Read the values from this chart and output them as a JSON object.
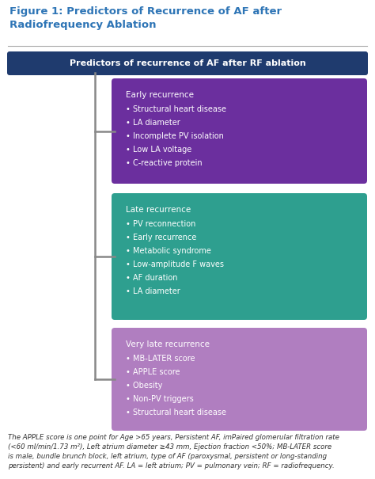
{
  "title": "Figure 1: Predictors of Recurrence of AF after\nRadiofrequency Ablation",
  "title_color": "#2E75B6",
  "title_fontsize": 9.5,
  "header_text": "Predictors of recurrence of AF after RF ablation",
  "header_bg": "#1F3B6E",
  "header_text_color": "#FFFFFF",
  "header_text_fontsize": 8.0,
  "boxes": [
    {
      "title": "Early recurrence",
      "items": [
        "Structural heart disease",
        "LA diameter",
        "Incomplete PV isolation",
        "Low LA voltage",
        "C-reactive protein"
      ],
      "bg_color": "#6B2F9E",
      "text_color": "#FFFFFF"
    },
    {
      "title": "Late recurrence",
      "items": [
        "PV reconnection",
        "Early recurrence",
        "Metabolic syndrome",
        "Low-amplitude F waves",
        "AF duration",
        "LA diameter"
      ],
      "bg_color": "#2E9F8F",
      "text_color": "#FFFFFF"
    },
    {
      "title": "Very late recurrence",
      "items": [
        "MB-LATER score",
        "APPLE score",
        "Obesity",
        "Non-PV triggers",
        "Structural heart disease"
      ],
      "bg_color": "#B07EC0",
      "text_color": "#FFFFFF"
    }
  ],
  "footnote": "The APPLE score is one point for Age >65 years, Persistent AF, imPaired glomerular filtration rate\n(<60 ml/min/1.73 m²), Left atrium diameter ≥43 mm, Ejection fraction <50%; MB-LATER score\nis male, bundle brunch block, left atrium, type of AF (paroxysmal, persistent or long-standing\npersistent) and early recurrent AF. LA = left atrium; PV = pulmonary vein; RF = radiofrequency.",
  "footnote_fontsize": 6.2,
  "bg_color": "#FFFFFF",
  "separator_color": "#AAAAAA",
  "connector_color": "#888888",
  "connector_linewidth": 1.8
}
